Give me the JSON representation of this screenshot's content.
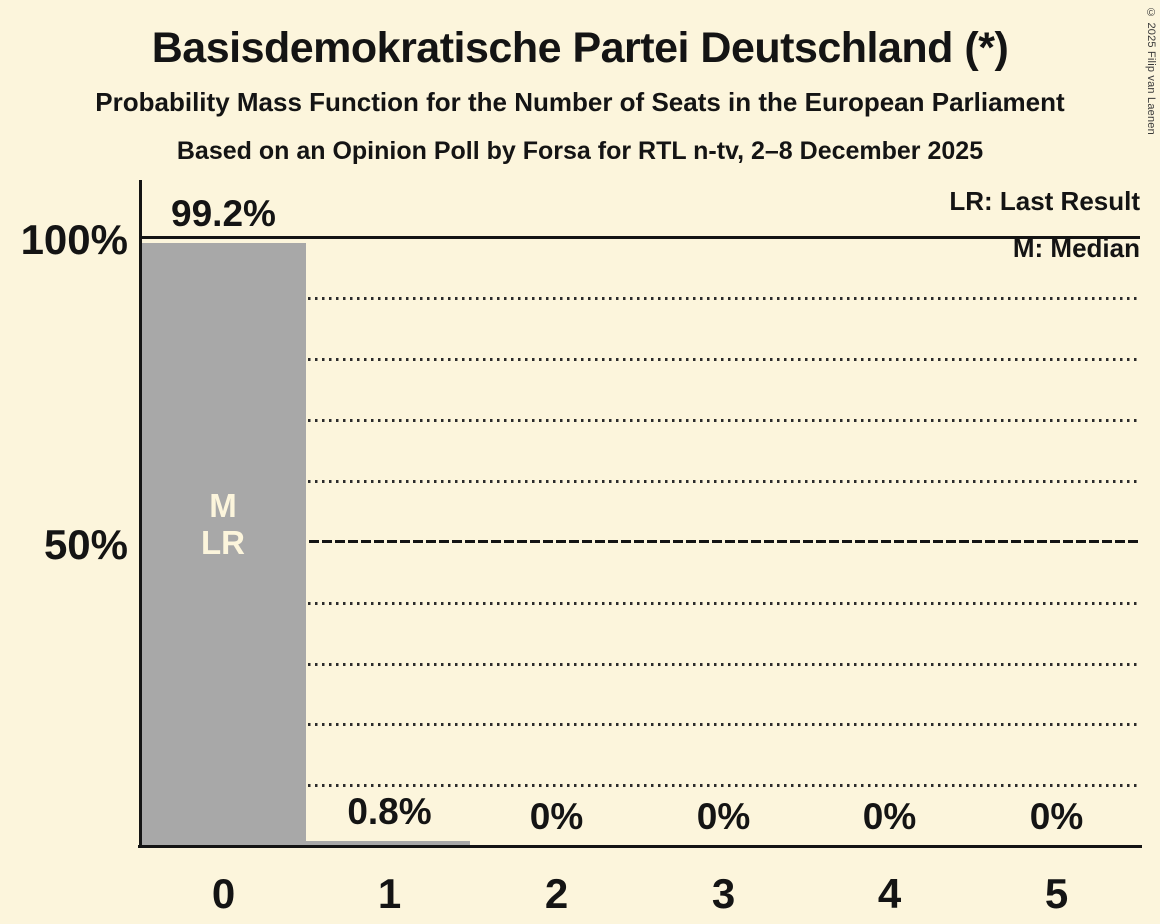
{
  "chart_data": {
    "type": "bar",
    "title": "Basisdemokratische Partei Deutschland (*)",
    "subtitle": "Probability Mass Function for the Number of Seats in the European Parliament",
    "source": "Based on an Opinion Poll by Forsa for RTL n-tv, 2–8 December 2025",
    "copyright": "© 2025 Filip van Laenen",
    "categories": [
      "0",
      "1",
      "2",
      "3",
      "4",
      "5"
    ],
    "values": [
      99.2,
      0.8,
      0,
      0,
      0,
      0
    ],
    "value_labels": [
      "99.2%",
      "0.8%",
      "0%",
      "0%",
      "0%",
      "0%"
    ],
    "xlabel": "",
    "ylabel": "",
    "ylim": [
      0,
      100
    ],
    "y_ticks": [
      "100%",
      "50%"
    ],
    "gridlines_percent": [
      90,
      80,
      70,
      60,
      40,
      30,
      20,
      10
    ],
    "solid_lines_percent": [
      100,
      50
    ],
    "legend": {
      "last_result": "LR: Last Result",
      "median": "M: Median"
    },
    "bar_annotations": {
      "bar_index": 0,
      "median_label": "M",
      "last_result_label": "LR"
    },
    "legend_position": "top-right",
    "grid": "dotted-horizontal",
    "colors": {
      "background": "#FCF5DC",
      "bar": "#A8A8A8",
      "text": "#141414",
      "bar_label": "#FCF5DC"
    }
  }
}
